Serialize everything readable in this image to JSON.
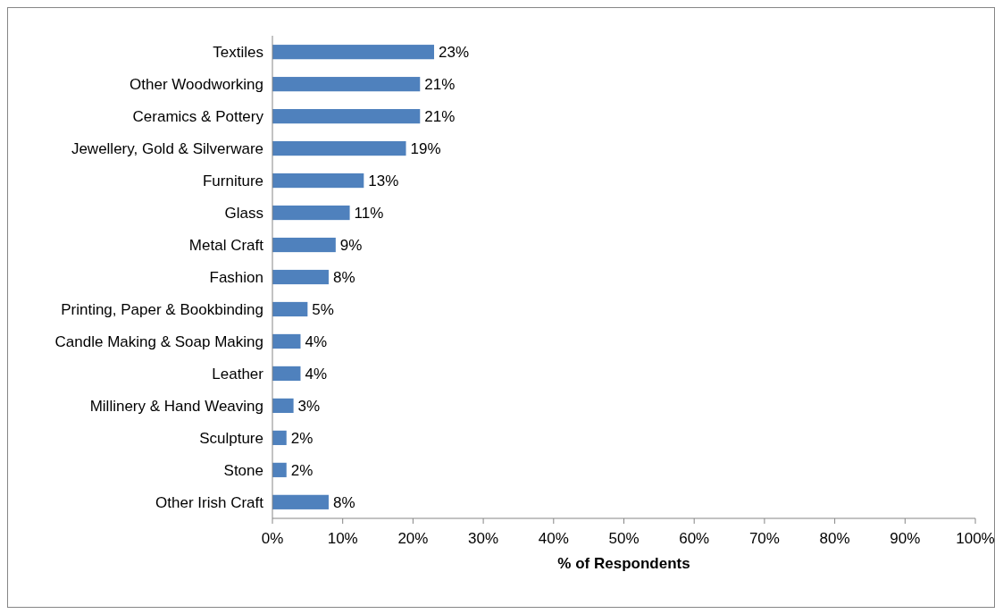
{
  "chart_data": {
    "type": "bar",
    "orientation": "horizontal",
    "xlabel": "% of Respondents",
    "categories": [
      "Textiles",
      "Other Woodworking",
      "Ceramics & Pottery",
      "Jewellery, Gold & Silverware",
      "Furniture",
      "Glass",
      "Metal Craft",
      "Fashion",
      "Printing, Paper & Bookbinding",
      "Candle Making & Soap Making",
      "Leather",
      "Millinery & Hand Weaving",
      "Sculpture",
      "Stone",
      "Other Irish Craft"
    ],
    "values": [
      23,
      21,
      21,
      19,
      13,
      11,
      9,
      8,
      5,
      4,
      4,
      3,
      2,
      2,
      8
    ],
    "value_labels": [
      "23%",
      "21%",
      "21%",
      "19%",
      "13%",
      "11%",
      "9%",
      "8%",
      "5%",
      "4%",
      "4%",
      "3%",
      "2%",
      "2%",
      "8%"
    ],
    "color": "#4f81bd",
    "grid": false,
    "xlim": [
      0,
      100
    ],
    "xticks": [
      {
        "value": 0,
        "label": "0%"
      },
      {
        "value": 10,
        "label": "10%"
      },
      {
        "value": 20,
        "label": "20%"
      },
      {
        "value": 30,
        "label": "30%"
      },
      {
        "value": 40,
        "label": "40%"
      },
      {
        "value": 50,
        "label": "50%"
      },
      {
        "value": 60,
        "label": "60%"
      },
      {
        "value": 70,
        "label": "70%"
      },
      {
        "value": 80,
        "label": "80%"
      },
      {
        "value": 90,
        "label": "90%"
      },
      {
        "value": 100,
        "label": "100%"
      }
    ]
  }
}
